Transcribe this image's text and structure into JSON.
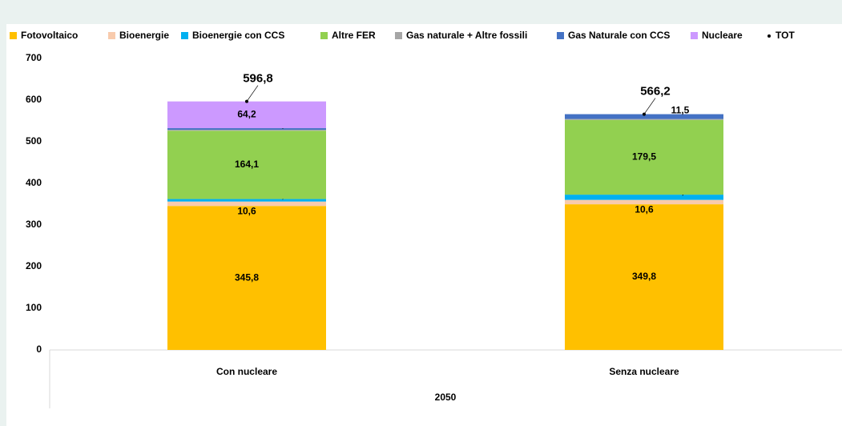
{
  "chart_data": {
    "type": "stacked_bar",
    "categories": [
      "Con nucleare",
      "Senza nucleare"
    ],
    "group_label": "2050",
    "ylim": [
      0,
      700
    ],
    "yticks": [
      0,
      100,
      200,
      300,
      400,
      500,
      600,
      700
    ],
    "series": [
      {
        "name": "Fotovoltaico",
        "color": "#ffc000",
        "values": [
          345.8,
          349.8
        ],
        "value_labels": [
          "345,8",
          "349,8"
        ]
      },
      {
        "name": "Bioenergie",
        "color": "#f8cbad",
        "values": [
          10.6,
          10.6
        ],
        "value_labels": [
          "10,6",
          "10,6"
        ]
      },
      {
        "name": "Bioenergie con CCS",
        "color": "#00b0f0",
        "values": [
          6.0,
          12.5
        ],
        "value_labels": [
          "6,0",
          "12,5"
        ]
      },
      {
        "name": "Altre FER",
        "color": "#92d050",
        "values": [
          164.1,
          179.5
        ],
        "value_labels": [
          "164,1",
          "179,5"
        ]
      },
      {
        "name": "Gas naturale + Altre fossili",
        "color": "#a6a6a6",
        "values": [
          2.1,
          2.3
        ]
      },
      {
        "name": "Gas Naturale con CCS",
        "color": "#4472c4",
        "values": [
          4.0,
          11.5
        ],
        "value_labels": [
          "4,0",
          "11,5"
        ]
      },
      {
        "name": "Nucleare",
        "color": "#cc99ff",
        "values": [
          64.2,
          null
        ],
        "value_labels": [
          "64,2",
          null
        ]
      }
    ],
    "total": {
      "name": "TOT",
      "color": "#000000",
      "label_color": "#ff0000",
      "values": [
        596.8,
        566.2
      ],
      "value_labels": [
        "596,8",
        "566,2"
      ]
    }
  }
}
